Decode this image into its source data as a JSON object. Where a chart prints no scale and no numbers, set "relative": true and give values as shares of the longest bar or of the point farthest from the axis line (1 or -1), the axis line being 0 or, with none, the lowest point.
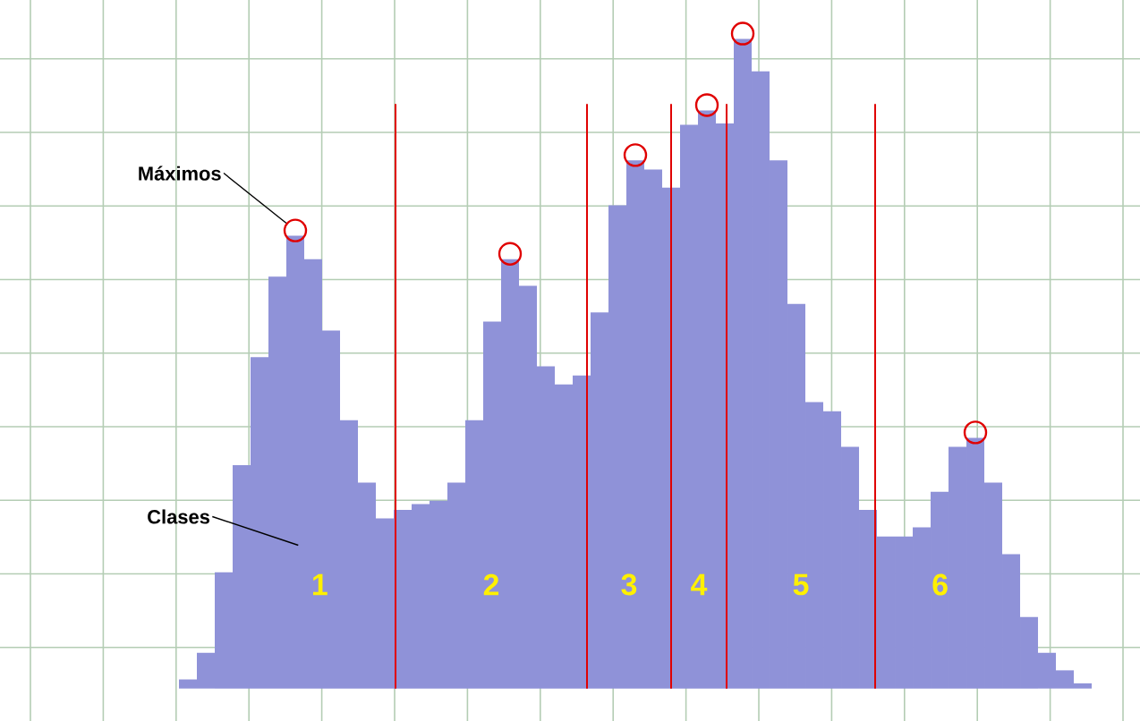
{
  "chart_data": {
    "type": "bar",
    "relative": true,
    "grid": true,
    "categories": [
      null,
      null,
      null,
      null,
      null,
      null,
      null,
      null,
      null,
      null,
      null,
      null,
      null,
      null,
      null,
      null,
      null,
      null,
      null,
      null,
      null,
      null,
      null,
      null,
      null,
      null,
      null,
      null,
      null,
      null,
      null,
      null,
      null,
      null,
      null,
      null,
      null,
      null,
      null,
      null,
      null,
      null,
      null,
      null,
      null,
      null,
      null,
      null,
      null,
      null,
      null
    ],
    "series": [
      {
        "color": "#8f92d8",
        "values": [
          0.014,
          0.055,
          0.179,
          0.344,
          0.51,
          0.634,
          0.697,
          0.661,
          0.551,
          0.413,
          0.317,
          0.262,
          0.275,
          0.284,
          0.289,
          0.317,
          0.413,
          0.565,
          0.661,
          0.62,
          0.496,
          0.468,
          0.482,
          0.579,
          0.744,
          0.813,
          0.799,
          0.771,
          0.868,
          0.89,
          0.87,
          1.0,
          0.95,
          0.813,
          0.592,
          0.441,
          0.427,
          0.372,
          0.275,
          0.234,
          0.234,
          0.248,
          0.303,
          0.372,
          0.386,
          0.317,
          0.207,
          0.11,
          0.055,
          0.028,
          0.008
        ]
      }
    ],
    "annotations": [
      "Máximos",
      "Clases",
      "1",
      "2",
      "3",
      "4",
      "5",
      "6"
    ]
  }
}
